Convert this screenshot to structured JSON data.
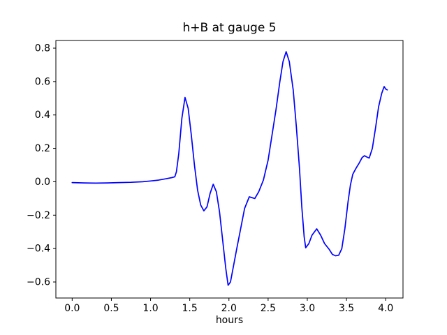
{
  "chart_data": {
    "type": "line",
    "title": "h+B at gauge 5",
    "xlabel": "hours",
    "ylabel": "",
    "line_color": "#0000ff",
    "axis_color": "#000000",
    "background_color": "#ffffff",
    "grid": false,
    "legend": null,
    "xlim": [
      -0.208,
      4.221
    ],
    "ylim": [
      -0.696,
      0.846
    ],
    "xticks": [
      0.0,
      0.5,
      1.0,
      1.5,
      2.0,
      2.5,
      3.0,
      3.5,
      4.0
    ],
    "yticks": [
      -0.6,
      -0.4,
      -0.2,
      0.0,
      0.2,
      0.4,
      0.6,
      0.8
    ],
    "series": [
      {
        "name": "h+B",
        "x": [
          0.0,
          0.15,
          0.3,
          0.45,
          0.6,
          0.75,
          0.9,
          1.0,
          1.1,
          1.2,
          1.27,
          1.31,
          1.33,
          1.36,
          1.4,
          1.44,
          1.48,
          1.52,
          1.56,
          1.6,
          1.64,
          1.68,
          1.72,
          1.76,
          1.8,
          1.84,
          1.88,
          1.92,
          1.96,
          1.99,
          2.02,
          2.06,
          2.1,
          2.15,
          2.2,
          2.26,
          2.33,
          2.38,
          2.44,
          2.5,
          2.55,
          2.6,
          2.65,
          2.69,
          2.73,
          2.77,
          2.82,
          2.86,
          2.9,
          2.93,
          2.96,
          2.98,
          3.02,
          3.06,
          3.12,
          3.17,
          3.22,
          3.28,
          3.32,
          3.36,
          3.4,
          3.44,
          3.48,
          3.52,
          3.55,
          3.58,
          3.62,
          3.66,
          3.7,
          3.73,
          3.76,
          3.79,
          3.83,
          3.87,
          3.91,
          3.95,
          3.98,
          4.0,
          4.02
        ],
        "y": [
          -0.005,
          -0.007,
          -0.008,
          -0.007,
          -0.005,
          -0.003,
          0.0,
          0.005,
          0.01,
          0.018,
          0.025,
          0.03,
          0.06,
          0.17,
          0.38,
          0.505,
          0.44,
          0.28,
          0.1,
          -0.05,
          -0.14,
          -0.174,
          -0.15,
          -0.07,
          -0.015,
          -0.06,
          -0.18,
          -0.35,
          -0.52,
          -0.62,
          -0.6,
          -0.5,
          -0.4,
          -0.28,
          -0.16,
          -0.09,
          -0.1,
          -0.06,
          0.01,
          0.13,
          0.28,
          0.43,
          0.6,
          0.72,
          0.779,
          0.72,
          0.55,
          0.33,
          0.08,
          -0.15,
          -0.33,
          -0.395,
          -0.37,
          -0.32,
          -0.282,
          -0.32,
          -0.37,
          -0.405,
          -0.435,
          -0.443,
          -0.44,
          -0.4,
          -0.28,
          -0.12,
          -0.02,
          0.045,
          0.08,
          0.11,
          0.145,
          0.156,
          0.148,
          0.142,
          0.2,
          0.32,
          0.45,
          0.53,
          0.57,
          0.555,
          0.55
        ]
      }
    ]
  }
}
